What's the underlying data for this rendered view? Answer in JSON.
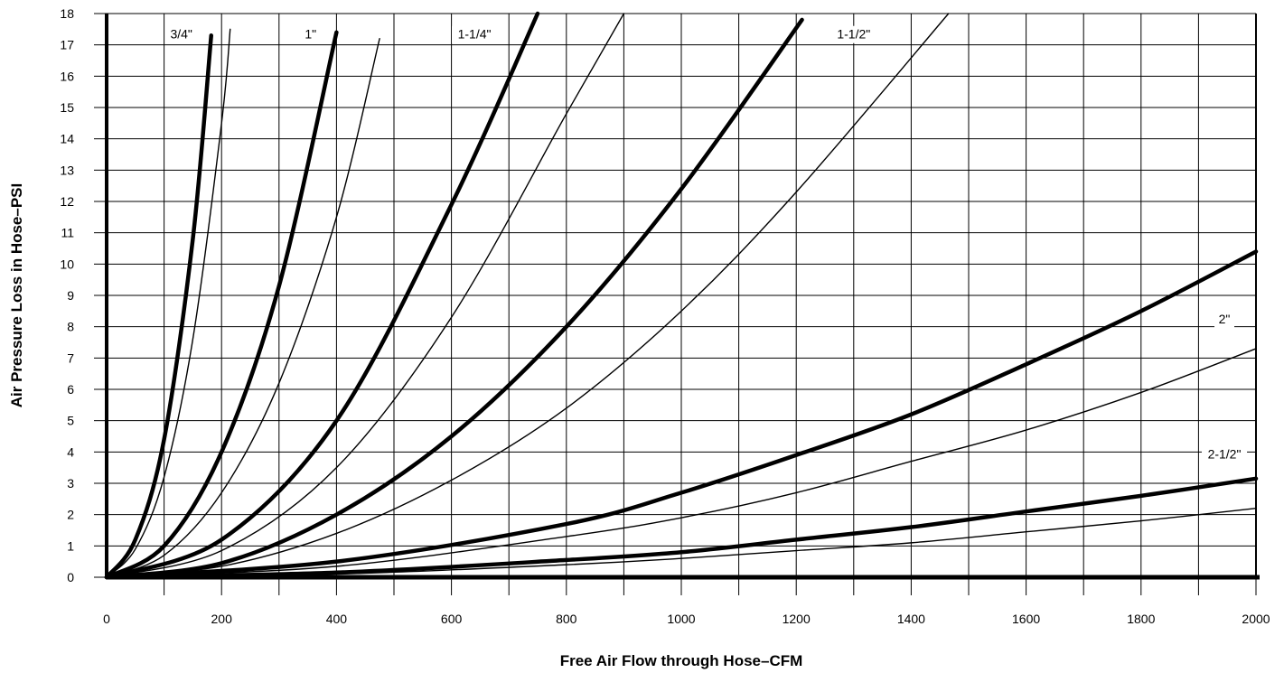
{
  "chart_data": {
    "type": "line",
    "title": "",
    "xlabel": "Free Air Flow through Hose–CFM",
    "ylabel": "Air Pressure Loss in Hose–PSI",
    "xlim": [
      0,
      2000
    ],
    "ylim": [
      0,
      18
    ],
    "x_ticks": [
      "0",
      "200",
      "400",
      "600",
      "800",
      "1000",
      "1200",
      "1400",
      "1600",
      "1800",
      "2000"
    ],
    "y_ticks": [
      "0",
      "1",
      "2",
      "3",
      "4",
      "5",
      "6",
      "7",
      "8",
      "9",
      "10",
      "11",
      "12",
      "13",
      "14",
      "15",
      "16",
      "17",
      "18"
    ],
    "grid": true,
    "series": [
      {
        "name": "3/4\"",
        "style": "heavy",
        "points": [
          [
            0,
            0
          ],
          [
            50,
            1.2
          ],
          [
            100,
            4.4
          ],
          [
            150,
            10.8
          ],
          [
            182,
            17.3
          ]
        ]
      },
      {
        "name": "",
        "style": "light",
        "points": [
          [
            0,
            0
          ],
          [
            50,
            0.9
          ],
          [
            100,
            3.2
          ],
          [
            150,
            7.6
          ],
          [
            200,
            14.5
          ],
          [
            215,
            17.5
          ]
        ]
      },
      {
        "name": "1\"",
        "style": "heavy",
        "points": [
          [
            0,
            0
          ],
          [
            100,
            1.0
          ],
          [
            200,
            4.0
          ],
          [
            300,
            9.3
          ],
          [
            400,
            17.4
          ]
        ]
      },
      {
        "name": "",
        "style": "light",
        "points": [
          [
            0,
            0
          ],
          [
            100,
            0.7
          ],
          [
            200,
            2.7
          ],
          [
            300,
            6.2
          ],
          [
            400,
            11.5
          ],
          [
            475,
            17.2
          ]
        ]
      },
      {
        "name": "1-1/4\"",
        "style": "heavy",
        "points": [
          [
            0,
            0
          ],
          [
            200,
            1.2
          ],
          [
            400,
            5.0
          ],
          [
            600,
            11.9
          ],
          [
            750,
            18.0
          ]
        ]
      },
      {
        "name": "",
        "style": "light",
        "points": [
          [
            0,
            0
          ],
          [
            200,
            0.85
          ],
          [
            400,
            3.5
          ],
          [
            600,
            8.3
          ],
          [
            800,
            14.8
          ],
          [
            900,
            18.0
          ]
        ]
      },
      {
        "name": "1-1/2\"",
        "style": "heavy",
        "points": [
          [
            0,
            0
          ],
          [
            200,
            0.45
          ],
          [
            400,
            2.0
          ],
          [
            600,
            4.5
          ],
          [
            800,
            8.0
          ],
          [
            1000,
            12.4
          ],
          [
            1210,
            17.8
          ]
        ]
      },
      {
        "name": "",
        "style": "light",
        "points": [
          [
            0,
            0
          ],
          [
            200,
            0.35
          ],
          [
            400,
            1.4
          ],
          [
            600,
            3.1
          ],
          [
            800,
            5.4
          ],
          [
            1000,
            8.5
          ],
          [
            1200,
            12.3
          ],
          [
            1465,
            18.0
          ]
        ]
      },
      {
        "name": "2\"",
        "style": "heavy",
        "points": [
          [
            0,
            0
          ],
          [
            400,
            0.5
          ],
          [
            800,
            1.7
          ],
          [
            1000,
            2.7
          ],
          [
            1200,
            3.9
          ],
          [
            1400,
            5.2
          ],
          [
            1600,
            6.8
          ],
          [
            1800,
            8.5
          ],
          [
            2000,
            10.4
          ]
        ]
      },
      {
        "name": "",
        "style": "light",
        "points": [
          [
            0,
            0
          ],
          [
            400,
            0.35
          ],
          [
            800,
            1.3
          ],
          [
            1000,
            1.9
          ],
          [
            1200,
            2.7
          ],
          [
            1400,
            3.7
          ],
          [
            1600,
            4.7
          ],
          [
            1800,
            5.9
          ],
          [
            2000,
            7.3
          ]
        ]
      },
      {
        "name": "2-1/2\"",
        "style": "heavy",
        "points": [
          [
            0,
            0
          ],
          [
            400,
            0.15
          ],
          [
            800,
            0.55
          ],
          [
            1000,
            0.8
          ],
          [
            1200,
            1.2
          ],
          [
            1400,
            1.6
          ],
          [
            1600,
            2.1
          ],
          [
            1800,
            2.6
          ],
          [
            2000,
            3.15
          ]
        ]
      },
      {
        "name": "",
        "style": "light",
        "points": [
          [
            0,
            0
          ],
          [
            400,
            0.1
          ],
          [
            800,
            0.4
          ],
          [
            1000,
            0.6
          ],
          [
            1200,
            0.85
          ],
          [
            1400,
            1.1
          ],
          [
            1600,
            1.45
          ],
          [
            1800,
            1.8
          ],
          [
            2000,
            2.2
          ]
        ]
      }
    ],
    "curve_labels": [
      {
        "text": "3/4\"",
        "x": 130,
        "y": 17.2
      },
      {
        "text": "1\"",
        "x": 355,
        "y": 17.2
      },
      {
        "text": "1-1/4\"",
        "x": 640,
        "y": 17.2
      },
      {
        "text": "1-1/2\"",
        "x": 1300,
        "y": 17.2
      },
      {
        "text": "2\"",
        "x": 1945,
        "y": 8.1
      },
      {
        "text": "2-1/2\"",
        "x": 1945,
        "y": 3.8
      }
    ]
  }
}
